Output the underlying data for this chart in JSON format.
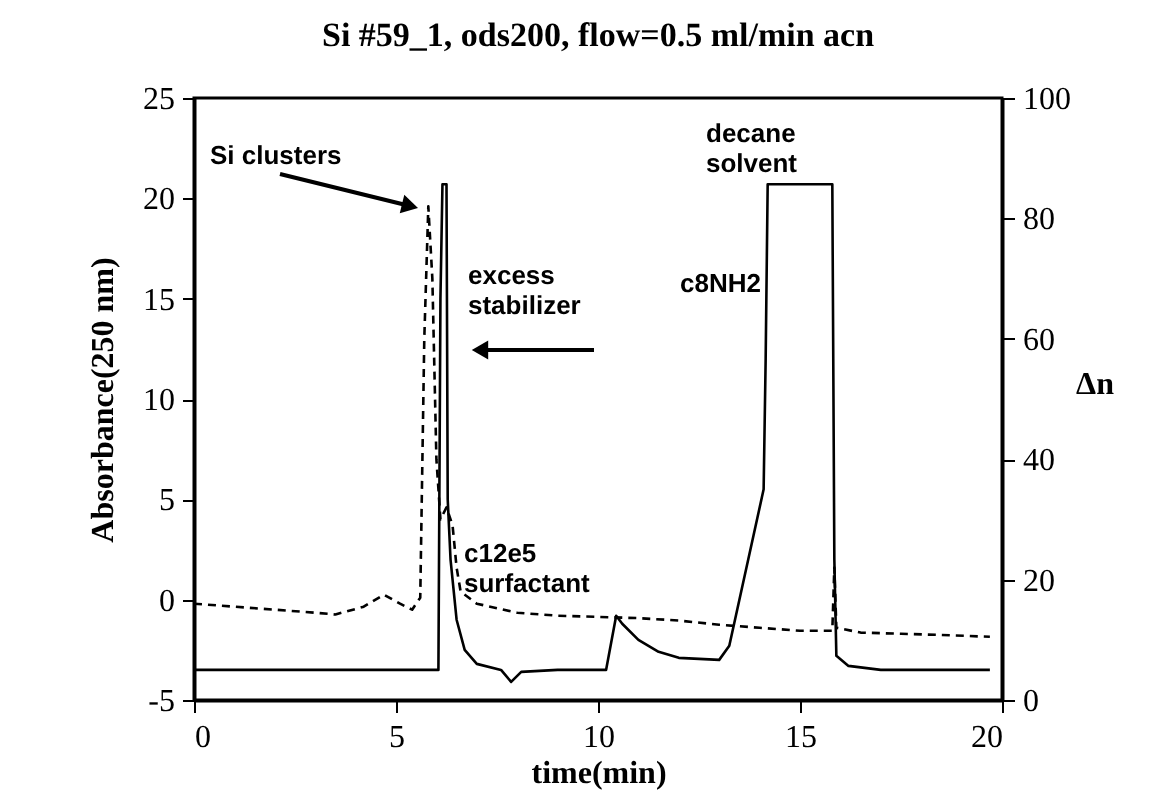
{
  "chart_data": {
    "type": "line",
    "title": "Si #59_1, ods200, flow=0.5 ml/min acn",
    "xlabel": "time(min)",
    "ylabel": "Absorbance(250 nm)",
    "y2label": "Δn",
    "xlim": [
      0,
      20
    ],
    "xticks": [
      0,
      5,
      10,
      15,
      20
    ],
    "ylim": [
      -5,
      25
    ],
    "yticks": [
      -5,
      0,
      5,
      10,
      15,
      20,
      25
    ],
    "y2lim": [
      0,
      100
    ],
    "y2ticks": [
      0,
      20,
      40,
      60,
      80,
      100
    ],
    "grid": false,
    "annotations": [
      "Si clusters",
      "excess stabilizer",
      "c8NH2",
      "c12e5 surfactant",
      "decane solvent"
    ],
    "series": [
      {
        "color": "#000000",
        "line_style": "solid",
        "axis": "y",
        "x": [
          0,
          5.9,
          6.05,
          6.1,
          6.15,
          6.25,
          6.28,
          6.35,
          6.5,
          6.7,
          7.0,
          7.6,
          7.85,
          8.1,
          9,
          10.2,
          10.45,
          10.6,
          11,
          11.5,
          12,
          13.0,
          13.25,
          14.1,
          14.15,
          14.2,
          15.8,
          15.85,
          15.9,
          16.2,
          17,
          19.7
        ],
        "values": [
          -3.5,
          -3.5,
          -3.5,
          15,
          20.7,
          20.7,
          5,
          2,
          -1,
          -2.5,
          -3.2,
          -3.5,
          -4.1,
          -3.6,
          -3.5,
          -3.5,
          -0.8,
          -1.2,
          -2,
          -2.6,
          -2.9,
          -3.0,
          -2.3,
          5.5,
          12,
          20.7,
          20.7,
          2,
          -2.8,
          -3.3,
          -3.5,
          -3.5
        ]
      },
      {
        "color": "#000000",
        "line_style": "dashed",
        "axis": "y2",
        "x": [
          0,
          1,
          2,
          3,
          3.5,
          4.2,
          4.7,
          5.1,
          5.4,
          5.6,
          5.7,
          5.8,
          5.9,
          6.0,
          6.1,
          6.25,
          6.4,
          6.5,
          6.6,
          7,
          8,
          9,
          10,
          11,
          12,
          13,
          14,
          15,
          15.8,
          15.85,
          15.9,
          16.5,
          17.5,
          18.5,
          19.7
        ],
        "values": [
          16,
          15.5,
          15,
          14.5,
          14.2,
          15.5,
          17.5,
          16,
          15,
          17,
          60,
          82,
          70,
          40,
          30,
          32,
          29,
          22,
          18,
          16,
          14.5,
          14,
          13.8,
          13.6,
          13.2,
          12.5,
          12,
          11.5,
          11.5,
          22,
          12,
          11.2,
          11,
          10.8,
          10.5
        ]
      }
    ]
  }
}
